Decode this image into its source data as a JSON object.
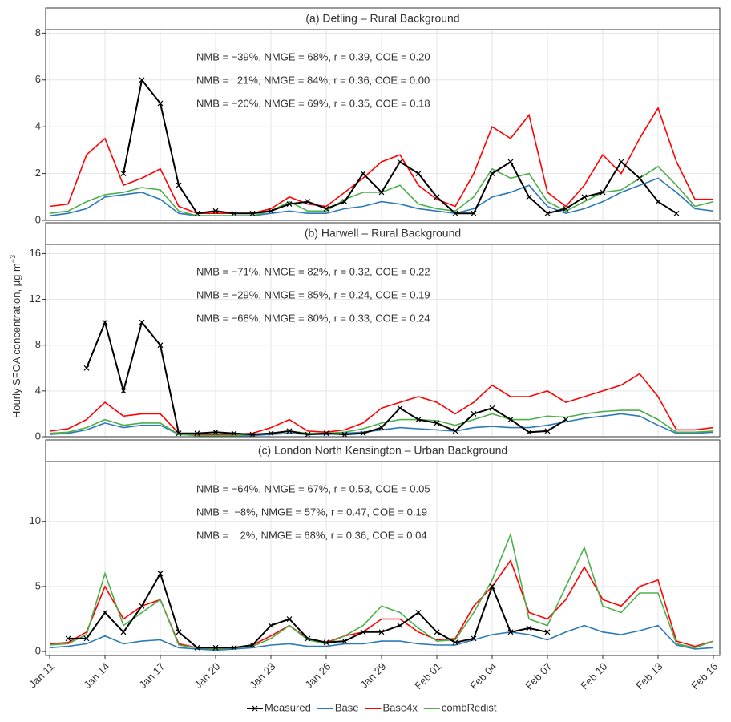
{
  "y_label": "Hourly SFOA concentration, μg m",
  "y_label_superscript": "−3",
  "chart_data": [
    {
      "type": "line",
      "title": "(a) Detling – Rural Background",
      "x": [
        "Jan 11",
        "Jan 12",
        "Jan 13",
        "Jan 14",
        "Jan 15",
        "Jan 16",
        "Jan 17",
        "Jan 18",
        "Jan 19",
        "Jan 20",
        "Jan 21",
        "Jan 22",
        "Jan 23",
        "Jan 24",
        "Jan 25",
        "Jan 26",
        "Jan 27",
        "Jan 28",
        "Jan 29",
        "Jan 30",
        "Jan 31",
        "Feb 01",
        "Feb 02",
        "Feb 03",
        "Feb 04",
        "Feb 05",
        "Feb 06",
        "Feb 07",
        "Feb 08",
        "Feb 09",
        "Feb 10",
        "Feb 11",
        "Feb 12",
        "Feb 13",
        "Feb 14",
        "Feb 15",
        "Feb 16"
      ],
      "xticks": [
        "Jan 11",
        "Jan 14",
        "Jan 17",
        "Jan 20",
        "Jan 23",
        "Jan 26",
        "Jan 29",
        "Feb 01",
        "Feb 04",
        "Feb 07",
        "Feb 10",
        "Feb 13",
        "Feb 16"
      ],
      "ylim": [
        0,
        8.15
      ],
      "yticks": [
        0,
        2,
        4,
        6,
        8
      ],
      "grid": true,
      "annotations": [
        {
          "text": "NMB = −39%, NMGE = 68%, r = 0.39, COE = 0.20",
          "color": "#2c7bb6"
        },
        {
          "text": "NMB =   21%, NMGE = 84%, r = 0.36, COE = 0.00",
          "color": "#ff0000"
        },
        {
          "text": "NMB = −20%, NMGE = 69%, r = 0.35, COE = 0.18",
          "color": "#4daf4a"
        }
      ],
      "series": [
        {
          "name": "Measured",
          "color": "#000000",
          "marker": "x",
          "values": [
            null,
            null,
            null,
            null,
            2,
            6,
            5,
            1.5,
            0.3,
            0.4,
            0.3,
            0.3,
            0.4,
            0.7,
            0.8,
            0.5,
            0.8,
            2,
            1.2,
            2.5,
            2,
            1.0,
            0.3,
            0.3,
            2,
            2.5,
            1,
            0.3,
            0.5,
            1.0,
            1.2,
            2.5,
            1.8,
            0.8,
            0.3,
            null,
            null
          ]
        },
        {
          "name": "Base",
          "color": "#2c7bb6",
          "values": [
            0.2,
            0.3,
            0.5,
            1.0,
            1.1,
            1.2,
            0.9,
            0.3,
            0.2,
            0.2,
            0.2,
            0.2,
            0.3,
            0.4,
            0.3,
            0.3,
            0.5,
            0.6,
            0.8,
            0.7,
            0.5,
            0.4,
            0.3,
            0.5,
            1.0,
            1.2,
            1.5,
            0.6,
            0.3,
            0.5,
            0.8,
            1.2,
            1.5,
            1.8,
            1.2,
            0.5,
            0.4
          ]
        },
        {
          "name": "Base4x",
          "color": "#ff0000",
          "values": [
            0.6,
            0.7,
            2.8,
            3.5,
            1.5,
            1.8,
            2.2,
            0.6,
            0.3,
            0.3,
            0.3,
            0.3,
            0.5,
            1.0,
            0.7,
            0.6,
            1.2,
            1.8,
            2.5,
            2.8,
            1.5,
            0.9,
            0.6,
            2.0,
            4.0,
            3.5,
            4.5,
            1.2,
            0.6,
            1.5,
            2.8,
            2.0,
            3.5,
            4.8,
            2.5,
            0.9,
            0.9
          ]
        },
        {
          "name": "combRedist",
          "color": "#4daf4a",
          "values": [
            0.3,
            0.4,
            0.8,
            1.1,
            1.2,
            1.4,
            1.3,
            0.4,
            0.2,
            0.2,
            0.2,
            0.2,
            0.4,
            0.8,
            0.4,
            0.4,
            0.9,
            1.2,
            1.2,
            1.5,
            0.7,
            0.5,
            0.4,
            1.0,
            2.2,
            1.8,
            2.0,
            0.8,
            0.4,
            0.8,
            1.2,
            1.3,
            1.8,
            2.3,
            1.5,
            0.6,
            0.8
          ]
        }
      ]
    },
    {
      "type": "line",
      "title": "(b) Harwell – Rural Background",
      "x": [
        "Jan 11",
        "Jan 12",
        "Jan 13",
        "Jan 14",
        "Jan 15",
        "Jan 16",
        "Jan 17",
        "Jan 18",
        "Jan 19",
        "Jan 20",
        "Jan 21",
        "Jan 22",
        "Jan 23",
        "Jan 24",
        "Jan 25",
        "Jan 26",
        "Jan 27",
        "Jan 28",
        "Jan 29",
        "Jan 30",
        "Jan 31",
        "Feb 01",
        "Feb 02",
        "Feb 03",
        "Feb 04",
        "Feb 05",
        "Feb 06",
        "Feb 07",
        "Feb 08",
        "Feb 09",
        "Feb 10",
        "Feb 11",
        "Feb 12",
        "Feb 13",
        "Feb 14",
        "Feb 15",
        "Feb 16"
      ],
      "xticks": [
        "Jan 11",
        "Jan 14",
        "Jan 17",
        "Jan 20",
        "Jan 23",
        "Jan 26",
        "Jan 29",
        "Feb 01",
        "Feb 04",
        "Feb 07",
        "Feb 10",
        "Feb 13",
        "Feb 16"
      ],
      "ylim": [
        0,
        16.8
      ],
      "yticks": [
        0,
        4,
        8,
        12,
        16
      ],
      "grid": true,
      "annotations": [
        {
          "text": "NMB = −71%, NMGE = 82%, r = 0.32, COE = 0.22",
          "color": "#2c7bb6"
        },
        {
          "text": "NMB = −29%, NMGE = 85%, r = 0.24, COE = 0.19",
          "color": "#ff0000"
        },
        {
          "text": "NMB = −68%, NMGE = 80%, r = 0.33, COE = 0.24",
          "color": "#4daf4a"
        }
      ],
      "series": [
        {
          "name": "Measured",
          "color": "#000000",
          "marker": "x",
          "values": [
            null,
            null,
            6,
            10,
            4,
            10,
            8,
            0.3,
            0.3,
            0.4,
            0.3,
            0.2,
            0.3,
            0.5,
            0.2,
            0.3,
            0.2,
            0.3,
            0.8,
            2.5,
            1.5,
            1.2,
            0.5,
            2.0,
            2.5,
            1.5,
            0.4,
            0.5,
            1.5,
            null,
            null,
            null,
            null,
            null,
            null,
            null,
            null
          ]
        },
        {
          "name": "Base",
          "color": "#2c7bb6",
          "values": [
            0.2,
            0.3,
            0.6,
            1.2,
            0.8,
            1.0,
            1.0,
            0.2,
            0.1,
            0.1,
            0.1,
            0.1,
            0.2,
            0.3,
            0.2,
            0.2,
            0.3,
            0.4,
            0.6,
            0.8,
            0.7,
            0.6,
            0.5,
            0.8,
            0.9,
            0.8,
            0.8,
            1.0,
            1.3,
            1.6,
            1.8,
            2.0,
            1.8,
            1.0,
            0.3,
            0.3,
            0.4
          ]
        },
        {
          "name": "Base4x",
          "color": "#ff0000",
          "values": [
            0.5,
            0.7,
            1.5,
            3.0,
            1.8,
            2.0,
            2.0,
            0.3,
            0.2,
            0.2,
            0.2,
            0.3,
            0.8,
            1.5,
            0.5,
            0.4,
            0.6,
            1.2,
            2.5,
            3.0,
            3.5,
            3.0,
            2.0,
            3.0,
            4.5,
            3.5,
            3.5,
            4.0,
            3.0,
            3.5,
            4.0,
            4.5,
            5.5,
            3.5,
            0.6,
            0.6,
            0.8
          ]
        },
        {
          "name": "combRedist",
          "color": "#4daf4a",
          "values": [
            0.3,
            0.4,
            0.8,
            1.5,
            1.0,
            1.2,
            1.2,
            0.2,
            0.1,
            0.1,
            0.1,
            0.2,
            0.3,
            0.5,
            0.3,
            0.3,
            0.4,
            0.7,
            1.2,
            1.5,
            1.5,
            1.4,
            1.0,
            1.5,
            2.0,
            1.5,
            1.5,
            1.8,
            1.7,
            2.0,
            2.2,
            2.3,
            2.3,
            1.5,
            0.4,
            0.4,
            0.5
          ]
        }
      ]
    },
    {
      "type": "line",
      "title": "(c) London North Kensington – Urban Background",
      "x": [
        "Jan 11",
        "Jan 12",
        "Jan 13",
        "Jan 14",
        "Jan 15",
        "Jan 16",
        "Jan 17",
        "Jan 18",
        "Jan 19",
        "Jan 20",
        "Jan 21",
        "Jan 22",
        "Jan 23",
        "Jan 24",
        "Jan 25",
        "Jan 26",
        "Jan 27",
        "Jan 28",
        "Jan 29",
        "Jan 30",
        "Jan 31",
        "Feb 01",
        "Feb 02",
        "Feb 03",
        "Feb 04",
        "Feb 05",
        "Feb 06",
        "Feb 07",
        "Feb 08",
        "Feb 09",
        "Feb 10",
        "Feb 11",
        "Feb 12",
        "Feb 13",
        "Feb 14",
        "Feb 15",
        "Feb 16"
      ],
      "xticks": [
        "Jan 11",
        "Jan 14",
        "Jan 17",
        "Jan 20",
        "Jan 23",
        "Jan 26",
        "Jan 29",
        "Feb 01",
        "Feb 04",
        "Feb 07",
        "Feb 10",
        "Feb 13",
        "Feb 16"
      ],
      "ylim": [
        -0.3,
        14.6
      ],
      "yticks": [
        0,
        5,
        10
      ],
      "grid": true,
      "annotations": [
        {
          "text": "NMB = −64%, NMGE = 67%, r = 0.53, COE = 0.05",
          "color": "#2c7bb6"
        },
        {
          "text": "NMB =  −8%, NMGE = 57%, r = 0.47, COE = 0.19",
          "color": "#ff0000"
        },
        {
          "text": "NMB =    2%, NMGE = 68%, r = 0.36, COE = 0.04",
          "color": "#4daf4a"
        }
      ],
      "series": [
        {
          "name": "Measured",
          "color": "#000000",
          "marker": "x",
          "values": [
            null,
            1.0,
            1.0,
            3,
            1.5,
            3.5,
            6,
            1.5,
            0.3,
            0.3,
            0.3,
            0.5,
            2.0,
            2.5,
            1.0,
            0.7,
            0.8,
            1.5,
            1.5,
            2.0,
            3.0,
            1.5,
            0.7,
            1.0,
            5,
            1.5,
            1.8,
            1.5,
            null,
            null,
            null,
            null,
            null,
            null,
            null,
            null,
            null
          ]
        },
        {
          "name": "Base",
          "color": "#2c7bb6",
          "values": [
            0.3,
            0.4,
            0.6,
            1.2,
            0.6,
            0.8,
            0.9,
            0.3,
            0.2,
            0.1,
            0.2,
            0.3,
            0.5,
            0.6,
            0.4,
            0.4,
            0.6,
            0.6,
            0.8,
            0.8,
            0.6,
            0.5,
            0.5,
            0.9,
            1.3,
            1.5,
            1.3,
            0.9,
            1.5,
            2.0,
            1.5,
            1.3,
            1.6,
            2.0,
            0.5,
            0.2,
            0.3
          ]
        },
        {
          "name": "Base4x",
          "color": "#ff0000",
          "values": [
            0.6,
            0.7,
            1.5,
            5,
            2.5,
            3.5,
            4.0,
            0.6,
            0.3,
            0.2,
            0.3,
            0.5,
            1.2,
            2.0,
            1.0,
            0.7,
            1.2,
            1.5,
            2.5,
            2.5,
            1.5,
            0.9,
            1.0,
            3.5,
            5.0,
            7.0,
            3.0,
            2.5,
            4.0,
            6.5,
            4.0,
            3.5,
            5.0,
            5.5,
            0.8,
            0.4,
            0.8
          ]
        },
        {
          "name": "combRedist",
          "color": "#4daf4a",
          "values": [
            0.5,
            0.6,
            1.3,
            6.0,
            2.0,
            3.0,
            4.0,
            0.5,
            0.3,
            0.2,
            0.3,
            0.4,
            1.0,
            2.0,
            0.9,
            0.6,
            1.2,
            2.0,
            3.5,
            3.0,
            1.8,
            0.8,
            0.9,
            3.0,
            5.5,
            9.0,
            2.5,
            2.0,
            5.0,
            8.0,
            3.5,
            3.0,
            4.5,
            4.5,
            0.6,
            0.3,
            0.8
          ]
        }
      ]
    }
  ]
}
